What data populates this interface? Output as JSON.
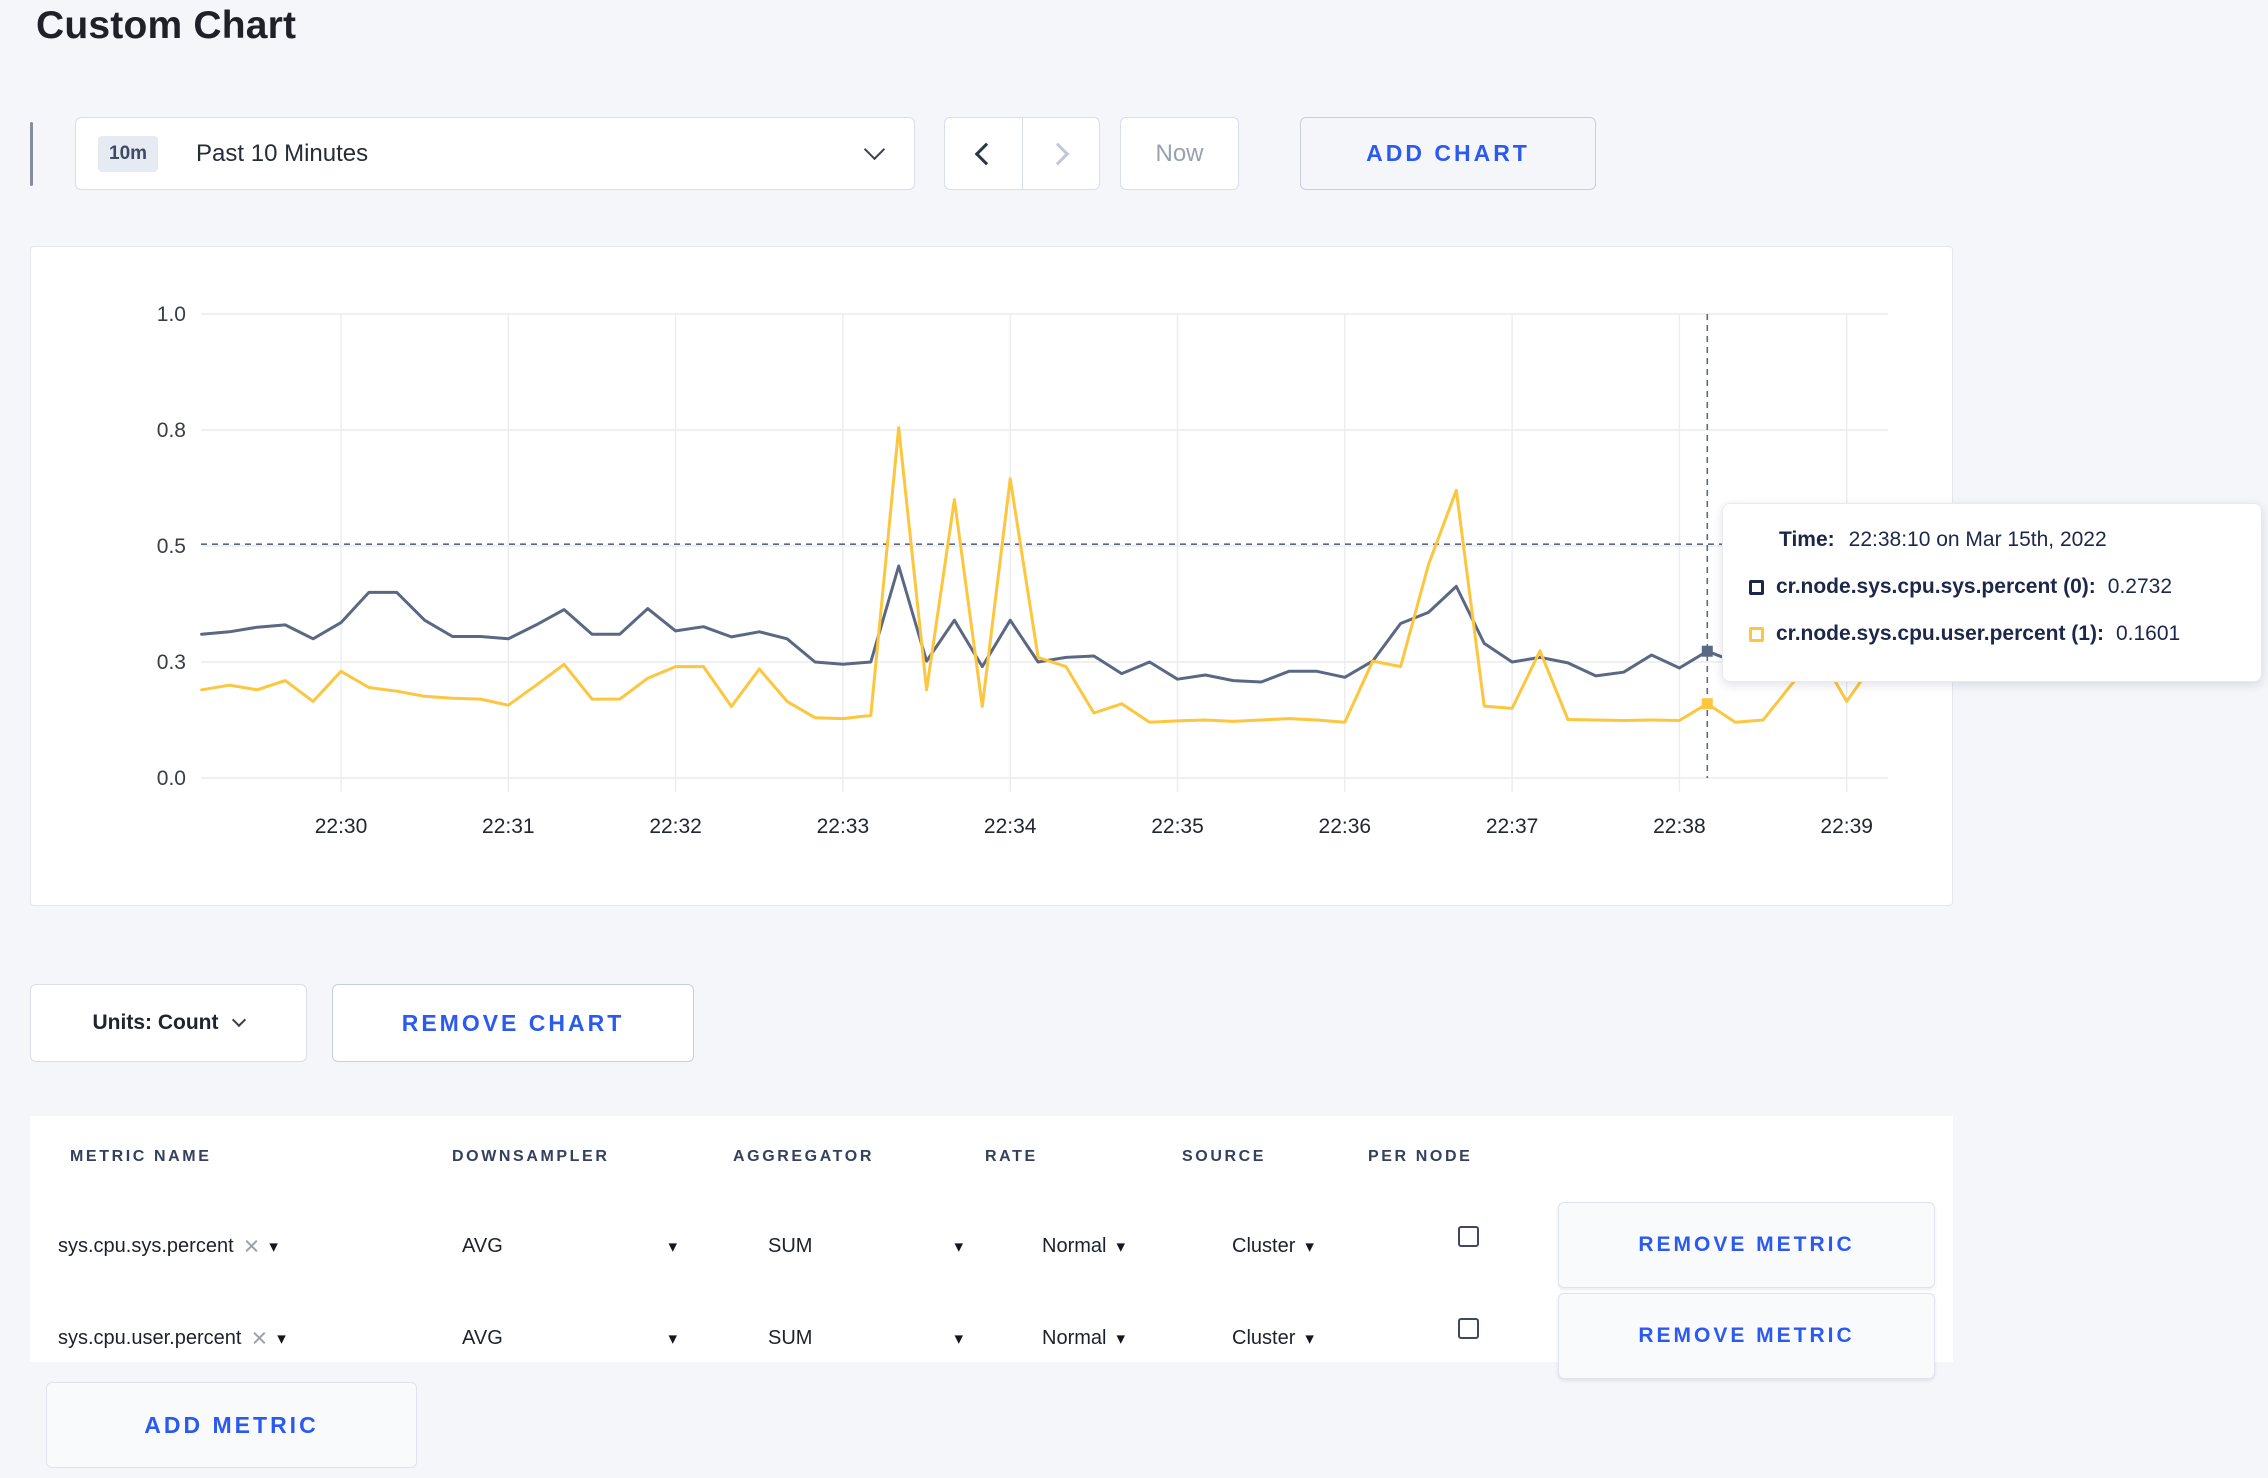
{
  "page": {
    "title": "Custom Chart"
  },
  "toolbar": {
    "time_window": {
      "badge": "10m",
      "label": "Past 10 Minutes"
    },
    "now_label": "Now",
    "add_chart_label": "ADD CHART"
  },
  "icons": {
    "chevron-down": "css-chevron",
    "chevron-left": "css-chevron",
    "chevron-right": "css-chevron",
    "caret-down": "▾",
    "clear": "×",
    "checkbox-unchecked": "css-square",
    "series-swatch": "css-square-outline"
  },
  "chart_data": {
    "type": "line",
    "title": "",
    "xlabel": "",
    "ylabel": "",
    "y_range": [
      0,
      1
    ],
    "grid": true,
    "legend_position": "tooltip",
    "y_ticks": [
      "0.0",
      "0.3",
      "0.5",
      "0.8",
      "1.0"
    ],
    "x_ticks": [
      "22:30",
      "22:31",
      "22:32",
      "22:33",
      "22:34",
      "22:35",
      "22:36",
      "22:37",
      "22:38",
      "22:39"
    ],
    "start_time": "22:29:10",
    "interval_seconds": 10,
    "series": [
      {
        "name": "cr.node.sys.cpu.sys.percent (0)",
        "color": "#5b6883",
        "values": [
          0.31,
          0.315,
          0.325,
          0.33,
          0.3,
          0.335,
          0.4,
          0.4,
          0.34,
          0.305,
          0.305,
          0.3,
          0.33,
          0.363,
          0.31,
          0.31,
          0.365,
          0.317,
          0.326,
          0.304,
          0.315,
          0.3,
          0.25,
          0.245,
          0.25,
          0.457,
          0.252,
          0.34,
          0.24,
          0.34,
          0.25,
          0.26,
          0.263,
          0.225,
          0.25,
          0.213,
          0.222,
          0.21,
          0.207,
          0.23,
          0.23,
          0.217,
          0.252,
          0.333,
          0.357,
          0.413,
          0.29,
          0.25,
          0.26,
          0.248,
          0.22,
          0.228,
          0.265,
          0.237,
          0.2732,
          0.25,
          0.27,
          0.28,
          0.26,
          0.27,
          0.3
        ]
      },
      {
        "name": "cr.node.sys.cpu.user.percent (1)",
        "color": "#fcc63e",
        "values": [
          0.19,
          0.2,
          0.19,
          0.21,
          0.165,
          0.23,
          0.195,
          0.187,
          0.176,
          0.172,
          0.17,
          0.157,
          0.2,
          0.245,
          0.17,
          0.17,
          0.215,
          0.24,
          0.24,
          0.154,
          0.235,
          0.165,
          0.13,
          0.128,
          0.135,
          0.755,
          0.19,
          0.6,
          0.154,
          0.645,
          0.26,
          0.24,
          0.14,
          0.16,
          0.12,
          0.123,
          0.125,
          0.122,
          0.125,
          0.128,
          0.125,
          0.12,
          0.252,
          0.24,
          0.46,
          0.62,
          0.155,
          0.15,
          0.274,
          0.126,
          0.125,
          0.124,
          0.125,
          0.124,
          0.1601,
          0.12,
          0.125,
          0.2,
          0.27,
          0.165,
          0.25
        ]
      }
    ],
    "crosshair": {
      "time": "22:38:10",
      "x_index": 54,
      "y_value": 0.504
    },
    "tooltip": {
      "time_label": "Time:",
      "time_value": "22:38:10 on Mar 15th, 2022",
      "rows": [
        {
          "label": "cr.node.sys.cpu.sys.percent (0):",
          "value": "0.2732"
        },
        {
          "label": "cr.node.sys.cpu.user.percent (1):",
          "value": "0.1601"
        }
      ]
    }
  },
  "controls": {
    "units_label": "Units: Count",
    "remove_chart_label": "REMOVE CHART",
    "add_metric_label": "ADD METRIC",
    "remove_metric_label": "REMOVE METRIC"
  },
  "metrics_table": {
    "headers": [
      "METRIC NAME",
      "DOWNSAMPLER",
      "AGGREGATOR",
      "RATE",
      "SOURCE",
      "PER NODE"
    ],
    "rows": [
      {
        "metric": "sys.cpu.sys.percent",
        "downsampler": "AVG",
        "aggregator": "SUM",
        "rate": "Normal",
        "source": "Cluster",
        "per_node_checked": false
      },
      {
        "metric": "sys.cpu.user.percent",
        "downsampler": "AVG",
        "aggregator": "SUM",
        "rate": "Normal",
        "source": "Cluster",
        "per_node_checked": false
      }
    ]
  }
}
